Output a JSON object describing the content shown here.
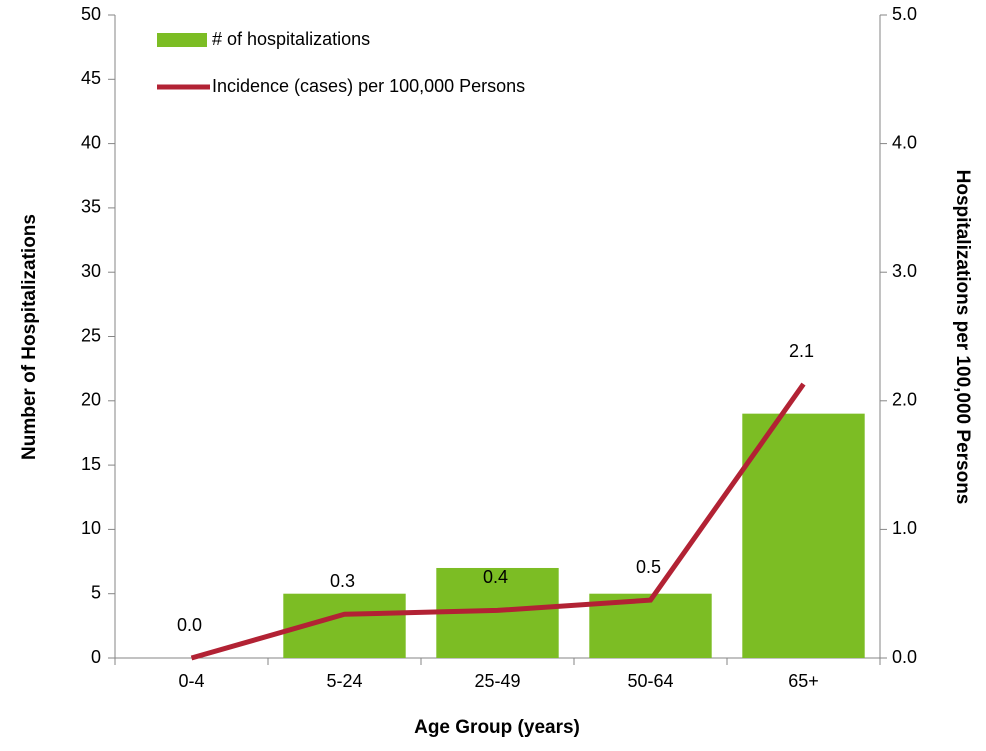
{
  "chart_data": {
    "type": "bar",
    "categories": [
      "0-4",
      "5-24",
      "25-49",
      "50-64",
      "65+"
    ],
    "xlabel": "Age Group (years)",
    "ylabel": "Number of Hospitalizations",
    "y2label": "Hospitalizations per 100,000 Persons",
    "ylim": [
      0,
      50
    ],
    "yticks": [
      0,
      5,
      10,
      15,
      20,
      25,
      30,
      35,
      40,
      45,
      50
    ],
    "y2lim": [
      0,
      5
    ],
    "y2ticks": [
      {
        "value": 0,
        "label": "0.0"
      },
      {
        "value": 1,
        "label": "1.0"
      },
      {
        "value": 2,
        "label": "2.0"
      },
      {
        "value": 3,
        "label": "3.0"
      },
      {
        "value": 4,
        "label": "4.0"
      },
      {
        "value": 5,
        "label": "5.0"
      }
    ],
    "legend": "top-left",
    "series": [
      {
        "name": "# of hospitalizations",
        "type": "bar",
        "color": "#7cbd24",
        "values": [
          0,
          5,
          7,
          5,
          19
        ]
      },
      {
        "name": "Incidence (cases) per 100,000 Persons",
        "type": "line",
        "axis": "y2",
        "color": "#b22234",
        "values": [
          0.0,
          0.34,
          0.37,
          0.45,
          2.13
        ],
        "value_labels": [
          "0.0",
          "0.3",
          "0.4",
          "0.5",
          "2.1"
        ]
      }
    ]
  }
}
